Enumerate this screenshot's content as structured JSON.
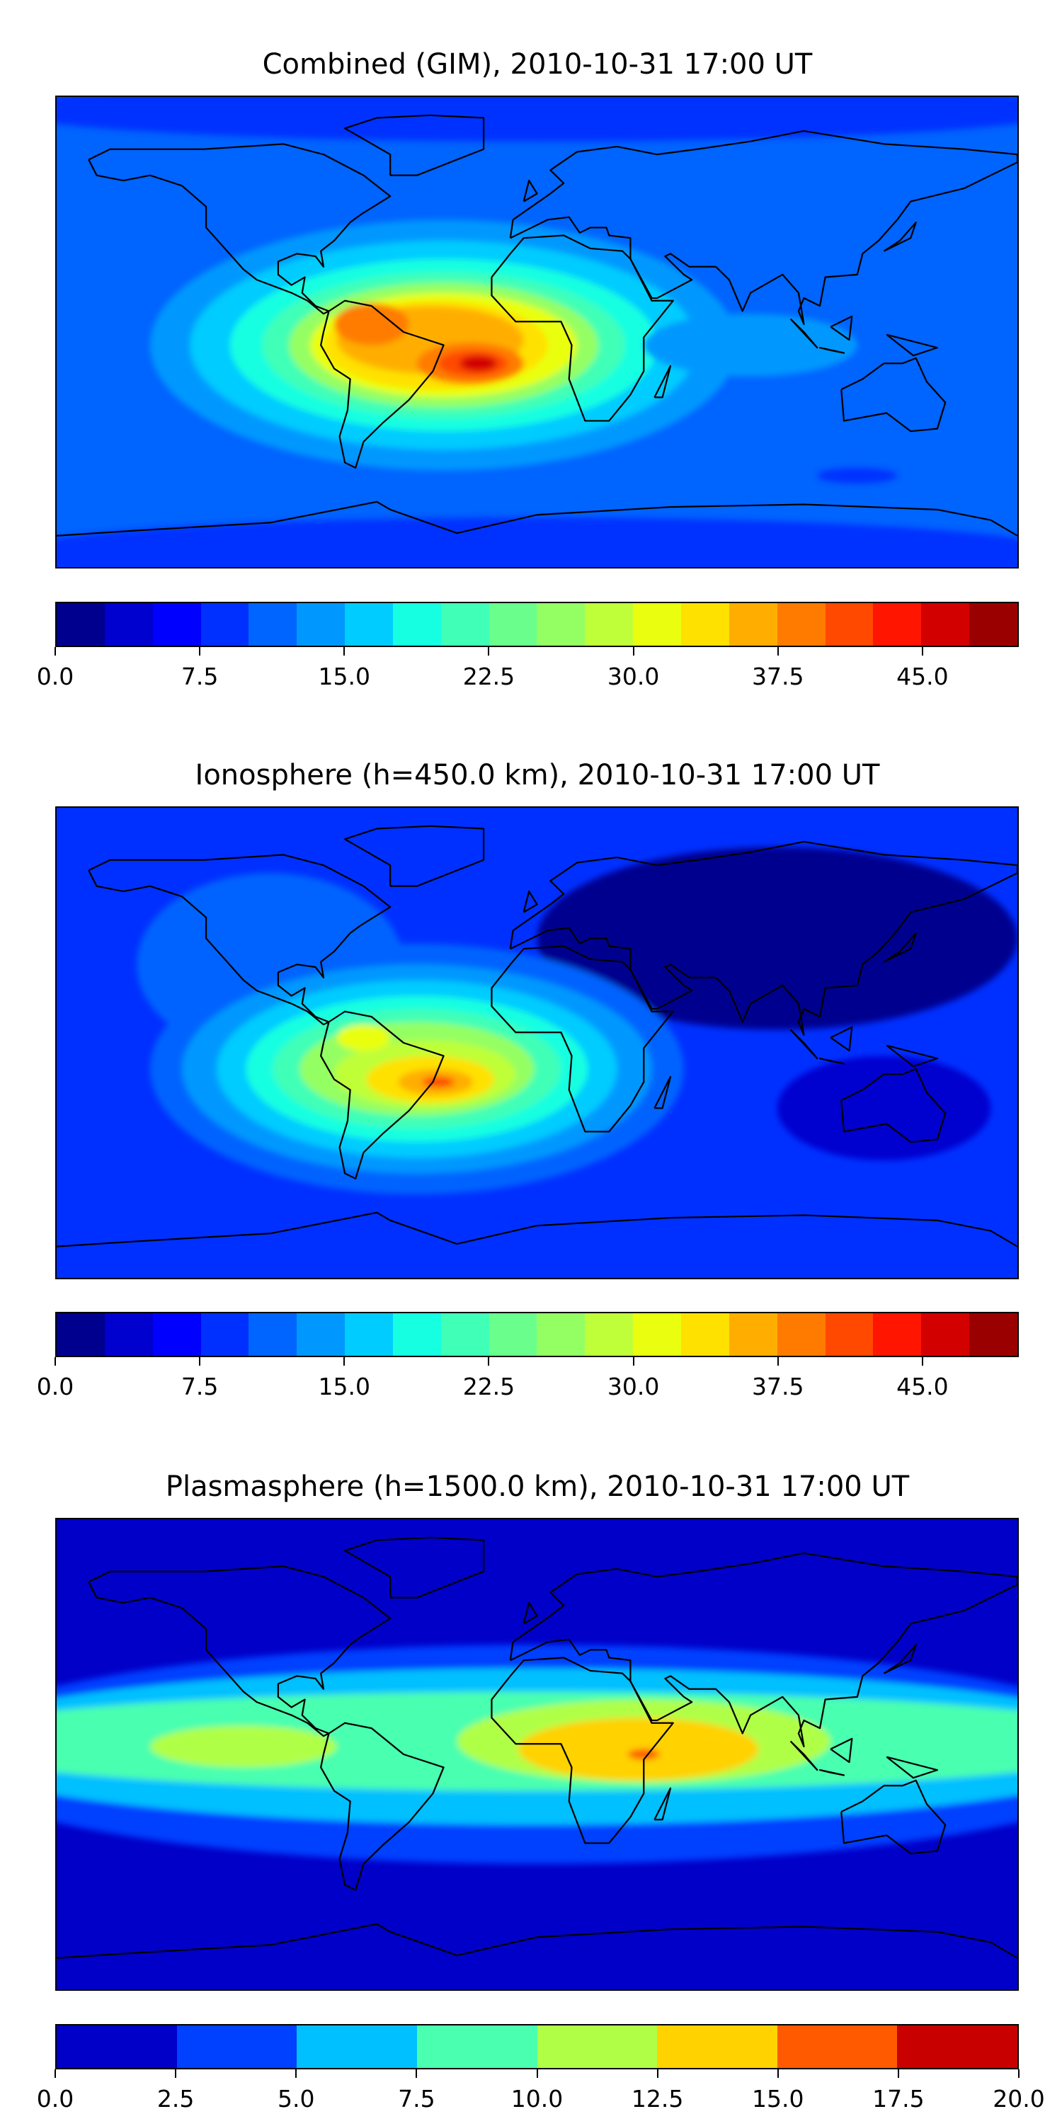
{
  "chart_data": [
    {
      "type": "heatmap",
      "title": "Combined (GIM), 2010-10-31 17:00 UT",
      "xlabel": "",
      "ylabel": "",
      "x_range_lon": [
        -180,
        180
      ],
      "y_range_lat": [
        -90,
        90
      ],
      "colorbar": {
        "min": 0,
        "max": 50,
        "step": 2.5,
        "ticks": [
          "0.0",
          "7.5",
          "15.0",
          "22.5",
          "30.0",
          "37.5",
          "45.0"
        ],
        "tick_values": [
          0,
          7.5,
          15,
          22.5,
          30,
          37.5,
          45
        ],
        "colors": [
          "#00008f",
          "#0000cf",
          "#0000ff",
          "#0030ff",
          "#0064ff",
          "#0098ff",
          "#00ccff",
          "#16ffe1",
          "#40ffb7",
          "#6aff8d",
          "#94ff63",
          "#bfff39",
          "#e9ff0f",
          "#ffe100",
          "#ffae00",
          "#ff7b00",
          "#ff4800",
          "#ff1500",
          "#d30000",
          "#9a0000"
        ]
      },
      "features": [
        {
          "description": "peak",
          "lon": -25,
          "lat": -12,
          "value": 45
        },
        {
          "description": "secondary peak",
          "lon": -60,
          "lat": 2,
          "value": 40
        },
        {
          "description": "background",
          "value": 10
        }
      ]
    },
    {
      "type": "heatmap",
      "title": "Ionosphere  (h=450.0 km), 2010-10-31 17:00 UT",
      "xlabel": "",
      "ylabel": "",
      "x_range_lon": [
        -180,
        180
      ],
      "y_range_lat": [
        -90,
        90
      ],
      "colorbar": {
        "min": 0,
        "max": 50,
        "step": 2.5,
        "ticks": [
          "0.0",
          "7.5",
          "15.0",
          "22.5",
          "30.0",
          "37.5",
          "45.0"
        ],
        "tick_values": [
          0,
          7.5,
          15,
          22.5,
          30,
          37.5,
          45
        ],
        "colors": [
          "#00008f",
          "#0000cf",
          "#0000ff",
          "#0030ff",
          "#0064ff",
          "#0098ff",
          "#00ccff",
          "#16ffe1",
          "#40ffb7",
          "#6aff8d",
          "#94ff63",
          "#bfff39",
          "#e9ff0f",
          "#ffe100",
          "#ffae00",
          "#ff7b00",
          "#ff4800",
          "#ff1500",
          "#d30000",
          "#9a0000"
        ]
      },
      "features": [
        {
          "description": "peak",
          "lon": -40,
          "lat": -15,
          "value": 40
        },
        {
          "description": "secondary peak",
          "lon": -65,
          "lat": 0,
          "value": 30
        },
        {
          "description": "minimum over Asia",
          "value": 2.5
        }
      ]
    },
    {
      "type": "heatmap",
      "title": "Plasmasphere (h=1500.0 km), 2010-10-31 17:00 UT",
      "xlabel": "",
      "ylabel": "",
      "x_range_lon": [
        -180,
        180
      ],
      "y_range_lat": [
        -90,
        90
      ],
      "colorbar": {
        "min": 0,
        "max": 20,
        "step": 2.5,
        "ticks": [
          "0.0",
          "2.5",
          "5.0",
          "7.5",
          "10.0",
          "12.5",
          "15.0",
          "17.5",
          "20.0"
        ],
        "tick_values": [
          0,
          2.5,
          5,
          7.5,
          10,
          12.5,
          15,
          17.5,
          20
        ],
        "colors": [
          "#0000c8",
          "#0040ff",
          "#00c0ff",
          "#4affb0",
          "#b0ff46",
          "#ffd200",
          "#ff5a00",
          "#c80000"
        ]
      },
      "features": [
        {
          "description": "peak",
          "lon": 38,
          "lat": 2,
          "value": 15
        },
        {
          "description": "equatorial band",
          "value": 10
        },
        {
          "description": "polar",
          "value": 2.5
        }
      ]
    }
  ]
}
